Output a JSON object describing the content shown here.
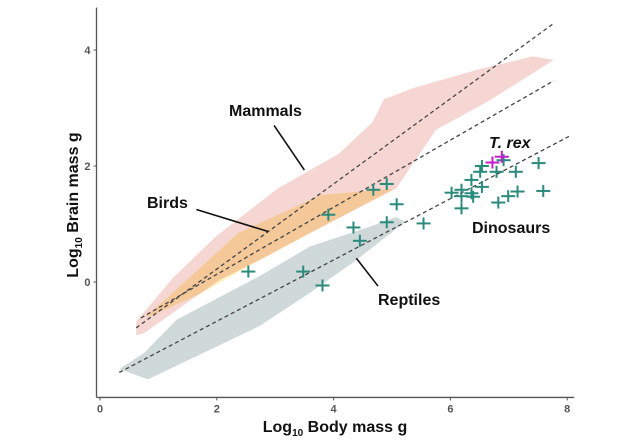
{
  "chart_data": {
    "type": "scatter",
    "xlabel": {
      "prefix": "Log",
      "sub": "10",
      "rest": " Body mass g"
    },
    "ylabel": {
      "prefix": "Log",
      "sub": "10",
      "rest": " Brain mass g"
    },
    "xlim": [
      -0.06,
      8.12
    ],
    "ylim": [
      -1.99,
      4.73
    ],
    "xticks": [
      0,
      2,
      4,
      6,
      8
    ],
    "yticks": [
      0,
      2,
      4
    ],
    "grid": false,
    "colors": {
      "mammals": "#f6d6d3",
      "birds": "#fcefc2",
      "birds_overlap": "#f4c898",
      "reptiles": "#d0d9d9",
      "dinosaurs": "#2a8a7c",
      "trex": "#c21fc9",
      "trend": "#444444"
    },
    "regions": [
      {
        "name": "Mammals",
        "polygon": [
          [
            0.62,
            -0.68
          ],
          [
            1.25,
            0.07
          ],
          [
            1.99,
            0.79
          ],
          [
            3.04,
            1.61
          ],
          [
            4.09,
            2.21
          ],
          [
            4.67,
            2.76
          ],
          [
            4.86,
            3.15
          ],
          [
            5.38,
            3.35
          ],
          [
            6.43,
            3.65
          ],
          [
            7.41,
            3.89
          ],
          [
            7.77,
            3.83
          ],
          [
            6.67,
            3.13
          ],
          [
            5.75,
            2.62
          ],
          [
            5.07,
            1.61
          ],
          [
            3.59,
            0.84
          ],
          [
            2.73,
            0.38
          ],
          [
            2.05,
            0.04
          ],
          [
            1.25,
            -0.53
          ],
          [
            0.76,
            -0.88
          ],
          [
            0.62,
            -0.92
          ]
        ]
      },
      {
        "name": "Birds",
        "polygon": [
          [
            0.76,
            -0.62
          ],
          [
            1.31,
            -0.13
          ],
          [
            2.36,
            0.84
          ],
          [
            3.78,
            1.5
          ],
          [
            4.46,
            1.56
          ],
          [
            5.04,
            1.61
          ],
          [
            3.59,
            0.84
          ],
          [
            2.6,
            0.3
          ],
          [
            1.74,
            -0.19
          ],
          [
            1.13,
            -0.47
          ]
        ]
      },
      {
        "name": "Reptiles",
        "polygon": [
          [
            0.33,
            -1.5
          ],
          [
            0.76,
            -1.22
          ],
          [
            1.31,
            -0.65
          ],
          [
            2.73,
            0.1
          ],
          [
            3.59,
            0.61
          ],
          [
            4.64,
            0.96
          ],
          [
            5.07,
            1.12
          ],
          [
            5.23,
            1.04
          ],
          [
            4.39,
            0.38
          ],
          [
            3.59,
            -0.19
          ],
          [
            2.73,
            -0.76
          ],
          [
            0.82,
            -1.68
          ]
        ]
      }
    ],
    "trend_lines": [
      {
        "group": "Mammals",
        "from": [
          0.62,
          -0.79
        ],
        "to": [
          7.77,
          4.46
        ]
      },
      {
        "group": "Birds",
        "from": [
          0.7,
          -0.62
        ],
        "to": [
          7.77,
          3.47
        ]
      },
      {
        "group": "Reptiles",
        "from": [
          0.33,
          -1.56
        ],
        "to": [
          8.03,
          2.51
        ]
      }
    ],
    "series": [
      {
        "name": "Dinosaurs",
        "points": [
          [
            4.91,
            1.69
          ],
          [
            4.68,
            1.59
          ],
          [
            5.08,
            1.34
          ],
          [
            3.91,
            1.16
          ],
          [
            4.34,
            0.94
          ],
          [
            4.91,
            1.03
          ],
          [
            4.45,
            0.71
          ],
          [
            2.54,
            0.18
          ],
          [
            3.48,
            0.18
          ],
          [
            3.81,
            -0.06
          ],
          [
            5.54,
            1.01
          ],
          [
            6.02,
            1.54
          ],
          [
            6.19,
            1.59
          ],
          [
            6.19,
            1.48
          ],
          [
            6.36,
            1.53
          ],
          [
            6.39,
            1.47
          ],
          [
            6.36,
            1.76
          ],
          [
            6.54,
            1.64
          ],
          [
            6.51,
            1.9
          ],
          [
            6.54,
            2.0
          ],
          [
            6.79,
            1.9
          ],
          [
            6.91,
            2.1
          ],
          [
            7.12,
            1.9
          ],
          [
            7.51,
            2.05
          ],
          [
            6.19,
            1.27
          ],
          [
            6.82,
            1.37
          ],
          [
            6.99,
            1.48
          ],
          [
            7.15,
            1.56
          ],
          [
            7.59,
            1.57
          ]
        ]
      },
      {
        "name": "T. rex",
        "points": [
          [
            6.72,
            2.06
          ],
          [
            6.88,
            2.16
          ]
        ]
      }
    ],
    "annotations": {
      "mammals": "Mammals",
      "birds": "Birds",
      "reptiles": "Reptiles",
      "trex": "T. rex",
      "dinosaurs": "Dinosaurs"
    }
  }
}
